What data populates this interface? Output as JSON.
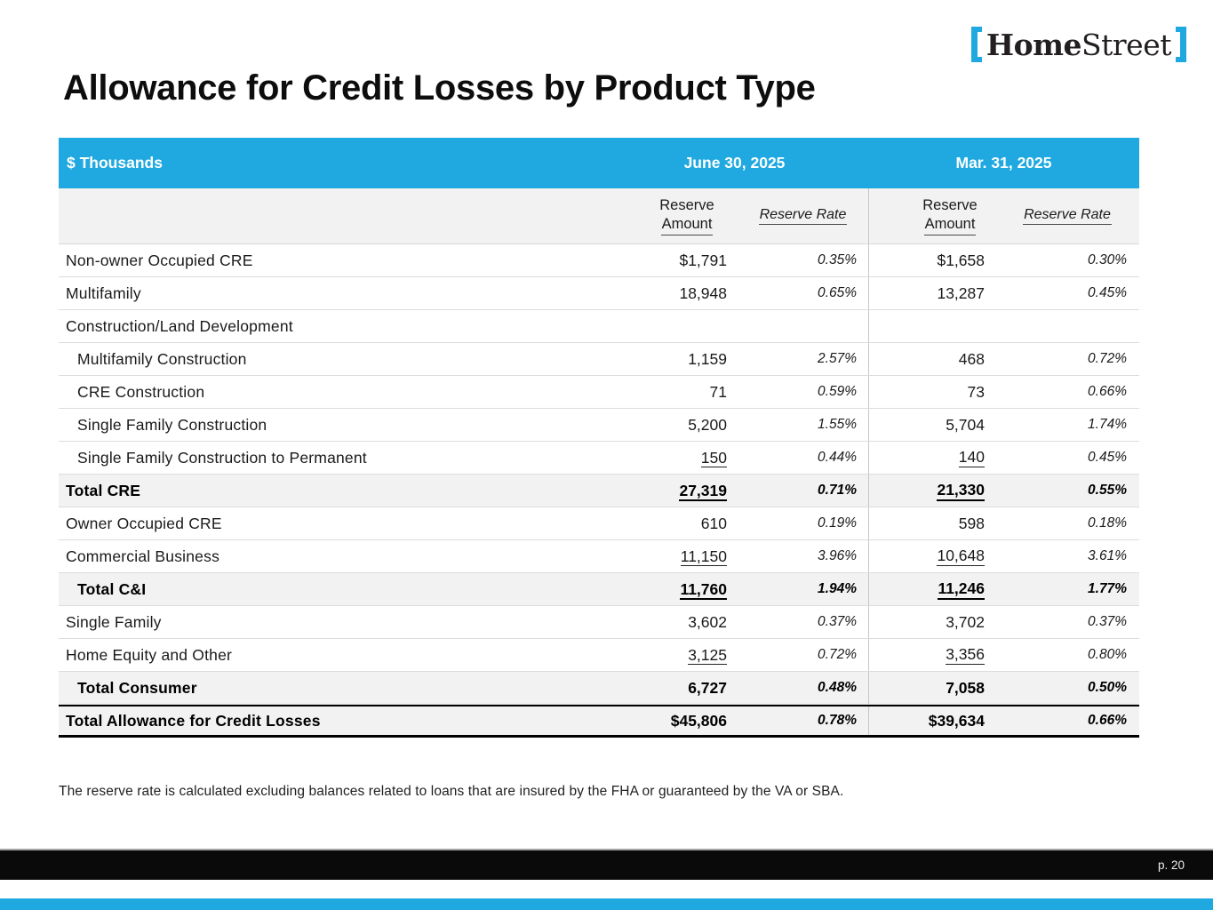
{
  "logo": {
    "home": "Home",
    "street": "Street",
    "bracket_color": "#1FA9E0",
    "text_color": "#231F20"
  },
  "title": "Allowance for Credit Losses by Product Type",
  "table": {
    "header": {
      "left": "$ Thousands",
      "period1": "June 30, 2025",
      "period2": "Mar. 31, 2025"
    },
    "subheader": {
      "amount_line1": "Reserve",
      "amount_line2": "Amount",
      "rate": "Reserve Rate"
    },
    "rows": [
      {
        "label": "Non-owner Occupied CRE",
        "indent": 0,
        "bold": false,
        "shaded": false,
        "cells": [
          {
            "v": "$1,791"
          },
          {
            "v": "0.35%"
          },
          {
            "v": "$1,658"
          },
          {
            "v": "0.30%"
          }
        ]
      },
      {
        "label": "Multifamily",
        "indent": 0,
        "bold": false,
        "shaded": false,
        "cells": [
          {
            "v": "18,948"
          },
          {
            "v": "0.65%"
          },
          {
            "v": "13,287"
          },
          {
            "v": "0.45%"
          }
        ]
      },
      {
        "label": "Construction/Land Development",
        "indent": 0,
        "bold": false,
        "shaded": false,
        "cells": [
          {
            "v": ""
          },
          {
            "v": ""
          },
          {
            "v": ""
          },
          {
            "v": ""
          }
        ]
      },
      {
        "label": "Multifamily Construction",
        "indent": 1,
        "bold": false,
        "shaded": false,
        "cells": [
          {
            "v": "1,159"
          },
          {
            "v": "2.57%"
          },
          {
            "v": "468"
          },
          {
            "v": "0.72%"
          }
        ]
      },
      {
        "label": "CRE Construction",
        "indent": 1,
        "bold": false,
        "shaded": false,
        "cells": [
          {
            "v": "71"
          },
          {
            "v": "0.59%"
          },
          {
            "v": "73"
          },
          {
            "v": "0.66%"
          }
        ]
      },
      {
        "label": "Single Family Construction",
        "indent": 1,
        "bold": false,
        "shaded": false,
        "cells": [
          {
            "v": "5,200"
          },
          {
            "v": "1.55%"
          },
          {
            "v": "5,704"
          },
          {
            "v": "1.74%"
          }
        ]
      },
      {
        "label": "Single Family Construction to Permanent",
        "indent": 1,
        "bold": false,
        "shaded": false,
        "cells": [
          {
            "v": "150",
            "u": true
          },
          {
            "v": "0.44%"
          },
          {
            "v": "140",
            "u": true
          },
          {
            "v": "0.45%"
          }
        ]
      },
      {
        "label": "Total CRE",
        "indent": 0,
        "bold": true,
        "shaded": true,
        "cells": [
          {
            "v": "27,319",
            "u": true
          },
          {
            "v": "0.71%"
          },
          {
            "v": "21,330",
            "u": true
          },
          {
            "v": "0.55%"
          }
        ]
      },
      {
        "label": "Owner Occupied CRE",
        "indent": 0,
        "bold": false,
        "shaded": false,
        "cells": [
          {
            "v": "610"
          },
          {
            "v": "0.19%"
          },
          {
            "v": "598"
          },
          {
            "v": "0.18%"
          }
        ]
      },
      {
        "label": "Commercial Business",
        "indent": 0,
        "bold": false,
        "shaded": false,
        "cells": [
          {
            "v": "11,150",
            "u": true
          },
          {
            "v": "3.96%"
          },
          {
            "v": "10,648",
            "u": true
          },
          {
            "v": "3.61%"
          }
        ]
      },
      {
        "label": "Total C&I",
        "indent": 1,
        "bold": true,
        "shaded": true,
        "cells": [
          {
            "v": "11,760",
            "u": true
          },
          {
            "v": "1.94%"
          },
          {
            "v": "11,246",
            "u": true
          },
          {
            "v": "1.77%"
          }
        ]
      },
      {
        "label": "Single Family",
        "indent": 0,
        "bold": false,
        "shaded": false,
        "cells": [
          {
            "v": "3,602"
          },
          {
            "v": "0.37%"
          },
          {
            "v": "3,702"
          },
          {
            "v": "0.37%"
          }
        ]
      },
      {
        "label": "Home Equity and Other",
        "indent": 0,
        "bold": false,
        "shaded": false,
        "cells": [
          {
            "v": "3,125",
            "u": true
          },
          {
            "v": "0.72%"
          },
          {
            "v": "3,356",
            "u": true
          },
          {
            "v": "0.80%"
          }
        ]
      },
      {
        "label": "Total Consumer",
        "indent": 1,
        "bold": true,
        "shaded": true,
        "cells": [
          {
            "v": "6,727"
          },
          {
            "v": "0.48%"
          },
          {
            "v": "7,058"
          },
          {
            "v": "0.50%"
          }
        ]
      },
      {
        "label": "Total Allowance for Credit Losses",
        "indent": 0,
        "bold": true,
        "shaded": true,
        "top_border": true,
        "cells": [
          {
            "v": "$45,806"
          },
          {
            "v": "0.78%"
          },
          {
            "v": "$39,634"
          },
          {
            "v": "0.66%"
          }
        ]
      }
    ]
  },
  "footnote": "The reserve rate is calculated excluding balances related to loans that are insured by the FHA or guaranteed by the VA or SBA.",
  "footer": {
    "page_label": "p. 20"
  },
  "colors": {
    "brand_cyan": "#1FA9E0",
    "shaded_row": "#F2F2F2",
    "footer_black": "#0A0A0A"
  }
}
